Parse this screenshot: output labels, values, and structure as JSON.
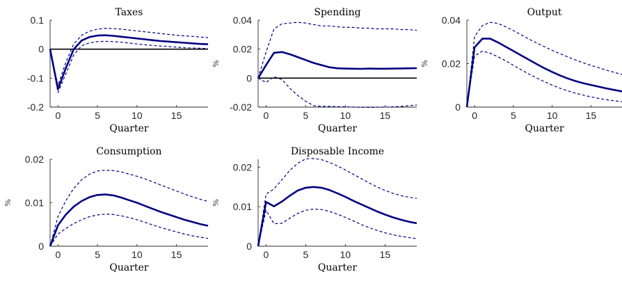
{
  "colors": {
    "line": "#000080",
    "zero": "#000000",
    "axis": "#262626"
  },
  "chart_data": [
    {
      "type": "line",
      "title": "Taxes",
      "xlabel": "Quarter",
      "ylabel": "",
      "xlim": [
        -1,
        19
      ],
      "ylim": [
        -0.2,
        0.1
      ],
      "xticks": [
        0,
        5,
        10,
        15
      ],
      "xtick_labels": [
        "0",
        "5",
        "10",
        "15"
      ],
      "yticks": [
        -0.2,
        -0.1,
        0,
        0.1
      ],
      "ytick_labels": [
        "-0.2",
        "-0.1",
        "0",
        "0.1"
      ],
      "zero_line": true,
      "x": [
        -1,
        0,
        1,
        2,
        3,
        4,
        5,
        6,
        7,
        8,
        9,
        10,
        11,
        12,
        13,
        14,
        15,
        16,
        17,
        18,
        19
      ],
      "series": [
        {
          "style": "solid",
          "values": [
            0,
            -0.138,
            -0.065,
            0.0,
            0.03,
            0.042,
            0.047,
            0.048,
            0.046,
            0.043,
            0.04,
            0.037,
            0.034,
            0.031,
            0.028,
            0.026,
            0.024,
            0.022,
            0.02,
            0.018,
            0.017
          ]
        },
        {
          "style": "dashed",
          "values": [
            0,
            -0.125,
            -0.045,
            0.018,
            0.048,
            0.062,
            0.069,
            0.072,
            0.071,
            0.069,
            0.066,
            0.063,
            0.06,
            0.057,
            0.054,
            0.051,
            0.048,
            0.046,
            0.044,
            0.042,
            0.04
          ]
        },
        {
          "style": "dashed",
          "values": [
            0,
            -0.15,
            -0.085,
            -0.02,
            0.012,
            0.022,
            0.026,
            0.027,
            0.026,
            0.024,
            0.021,
            0.018,
            0.015,
            0.013,
            0.011,
            0.009,
            0.007,
            0.005,
            0.004,
            0.003,
            0.002
          ]
        }
      ]
    },
    {
      "type": "line",
      "title": "Spending",
      "xlabel": "Quarter",
      "ylabel": "%",
      "xlim": [
        -1,
        19
      ],
      "ylim": [
        -0.02,
        0.04
      ],
      "xticks": [
        0,
        5,
        10,
        15
      ],
      "xtick_labels": [
        "0",
        "5",
        "10",
        "15"
      ],
      "yticks": [
        -0.02,
        0,
        0.02,
        0.04
      ],
      "ytick_labels": [
        "-0.02",
        "0",
        "0.02",
        "0.04"
      ],
      "zero_line": true,
      "x": [
        -1,
        0,
        1,
        2,
        3,
        4,
        5,
        6,
        7,
        8,
        9,
        10,
        11,
        12,
        13,
        14,
        15,
        16,
        17,
        18,
        19
      ],
      "series": [
        {
          "style": "solid",
          "values": [
            0,
            0.009,
            0.0175,
            0.018,
            0.0165,
            0.0145,
            0.0125,
            0.0105,
            0.009,
            0.0075,
            0.0068,
            0.0066,
            0.0065,
            0.0064,
            0.0066,
            0.0065,
            0.0065,
            0.0066,
            0.0067,
            0.0068,
            0.0069
          ]
        },
        {
          "style": "dashed",
          "values": [
            0,
            0.018,
            0.034,
            0.0375,
            0.038,
            0.0385,
            0.038,
            0.037,
            0.036,
            0.036,
            0.0355,
            0.035,
            0.035,
            0.0345,
            0.0345,
            0.034,
            0.034,
            0.034,
            0.0335,
            0.0335,
            0.033
          ]
        },
        {
          "style": "dashed",
          "values": [
            0,
            -0.003,
            0.001,
            -0.001,
            -0.007,
            -0.012,
            -0.016,
            -0.019,
            -0.0195,
            -0.0195,
            -0.0197,
            -0.0198,
            -0.02,
            -0.0201,
            -0.0202,
            -0.0201,
            -0.02,
            -0.0198,
            -0.0195,
            -0.019,
            -0.0185
          ]
        }
      ]
    },
    {
      "type": "line",
      "title": "Output",
      "xlabel": "Quarter",
      "ylabel": "%",
      "xlim": [
        -1,
        19
      ],
      "ylim": [
        0,
        0.04
      ],
      "xticks": [
        0,
        5,
        10,
        15
      ],
      "xtick_labels": [
        "0",
        "5",
        "10",
        "15"
      ],
      "yticks": [
        0,
        0.02,
        0.04
      ],
      "ytick_labels": [
        "0",
        "0.02",
        "0.04"
      ],
      "zero_line": false,
      "x": [
        -1,
        0,
        1,
        2,
        3,
        4,
        5,
        6,
        7,
        8,
        9,
        10,
        11,
        12,
        13,
        14,
        15,
        16,
        17,
        18,
        19
      ],
      "series": [
        {
          "style": "solid",
          "values": [
            0,
            0.0275,
            0.0315,
            0.0315,
            0.0298,
            0.0278,
            0.0258,
            0.0238,
            0.0218,
            0.0198,
            0.0179,
            0.0162,
            0.0146,
            0.0132,
            0.012,
            0.011,
            0.0102,
            0.0094,
            0.0086,
            0.0079,
            0.0072
          ]
        },
        {
          "style": "dashed",
          "values": [
            0,
            0.0325,
            0.0375,
            0.039,
            0.0385,
            0.037,
            0.0352,
            0.0333,
            0.0313,
            0.0295,
            0.0278,
            0.0261,
            0.0246,
            0.0231,
            0.0217,
            0.0204,
            0.0192,
            0.0181,
            0.017,
            0.016,
            0.015
          ]
        },
        {
          "style": "dashed",
          "values": [
            0,
            0.0235,
            0.0258,
            0.0248,
            0.0232,
            0.0213,
            0.0192,
            0.0172,
            0.0152,
            0.0134,
            0.0117,
            0.0101,
            0.0087,
            0.0075,
            0.0064,
            0.0055,
            0.0047,
            0.004,
            0.0034,
            0.0029,
            0.0025
          ]
        }
      ]
    },
    {
      "type": "line",
      "title": "Consumption",
      "xlabel": "Quarter",
      "ylabel": "%",
      "xlim": [
        -1,
        19
      ],
      "ylim": [
        0,
        0.02
      ],
      "xticks": [
        0,
        5,
        10,
        15
      ],
      "xtick_labels": [
        "0",
        "5",
        "10",
        "15"
      ],
      "yticks": [
        0,
        0.01,
        0.02
      ],
      "ytick_labels": [
        "0",
        "0.01",
        "0.02"
      ],
      "zero_line": false,
      "x": [
        -1,
        0,
        1,
        2,
        3,
        4,
        5,
        6,
        7,
        8,
        9,
        10,
        11,
        12,
        13,
        14,
        15,
        16,
        17,
        18,
        19
      ],
      "series": [
        {
          "style": "solid",
          "values": [
            0,
            0.0048,
            0.0073,
            0.0091,
            0.0104,
            0.0113,
            0.0118,
            0.0119,
            0.0117,
            0.0112,
            0.0106,
            0.01,
            0.0093,
            0.0086,
            0.0079,
            0.0073,
            0.0067,
            0.0061,
            0.0056,
            0.0051,
            0.0047
          ]
        },
        {
          "style": "dashed",
          "values": [
            0,
            0.0068,
            0.0105,
            0.0133,
            0.0153,
            0.0166,
            0.0173,
            0.0175,
            0.0174,
            0.0171,
            0.0166,
            0.0161,
            0.0155,
            0.0148,
            0.0141,
            0.0134,
            0.0127,
            0.012,
            0.0114,
            0.0108,
            0.0103
          ]
        },
        {
          "style": "dashed",
          "values": [
            0,
            0.0028,
            0.0041,
            0.0052,
            0.0061,
            0.0068,
            0.0072,
            0.0074,
            0.0073,
            0.007,
            0.0066,
            0.0061,
            0.0055,
            0.0049,
            0.0043,
            0.0038,
            0.0033,
            0.0028,
            0.0024,
            0.0021,
            0.0018
          ]
        }
      ]
    },
    {
      "type": "line",
      "title": "Disposable Income",
      "xlabel": "Quarter",
      "ylabel": "%",
      "xlim": [
        -1,
        19
      ],
      "ylim": [
        0,
        0.022
      ],
      "xticks": [
        0,
        5,
        10,
        15
      ],
      "xtick_labels": [
        "0",
        "5",
        "10",
        "15"
      ],
      "yticks": [
        0,
        0.01,
        0.02
      ],
      "ytick_labels": [
        "0",
        "0.01",
        "0.02"
      ],
      "zero_line": false,
      "x": [
        -1,
        0,
        1,
        2,
        3,
        4,
        5,
        6,
        7,
        8,
        9,
        10,
        11,
        12,
        13,
        14,
        15,
        16,
        17,
        18,
        19
      ],
      "series": [
        {
          "style": "solid",
          "values": [
            0,
            0.0112,
            0.0101,
            0.0113,
            0.0128,
            0.0141,
            0.0148,
            0.015,
            0.0148,
            0.0142,
            0.0134,
            0.0125,
            0.0115,
            0.0106,
            0.0097,
            0.0088,
            0.008,
            0.0073,
            0.0067,
            0.0062,
            0.0058
          ]
        },
        {
          "style": "dashed",
          "values": [
            0,
            0.0132,
            0.0145,
            0.0168,
            0.0192,
            0.021,
            0.0221,
            0.0222,
            0.0219,
            0.0212,
            0.0203,
            0.0193,
            0.0182,
            0.0171,
            0.016,
            0.015,
            0.0141,
            0.0134,
            0.0128,
            0.0124,
            0.0121
          ]
        },
        {
          "style": "dashed",
          "values": [
            0,
            0.0091,
            0.0057,
            0.0058,
            0.0071,
            0.0083,
            0.0091,
            0.0094,
            0.0093,
            0.0088,
            0.0081,
            0.0073,
            0.0064,
            0.0055,
            0.0047,
            0.004,
            0.0034,
            0.0029,
            0.0025,
            0.0022,
            0.0019
          ]
        }
      ]
    }
  ]
}
